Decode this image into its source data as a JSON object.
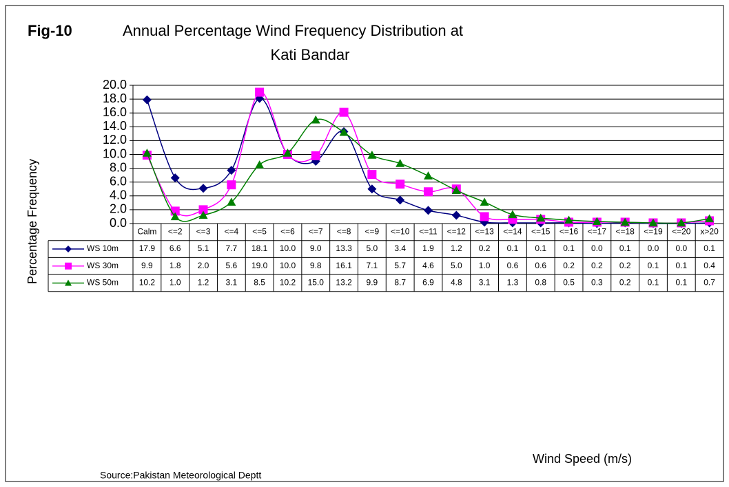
{
  "chart_data": {
    "type": "line",
    "title": "Fig-10",
    "subtitle": "Annual Percentage Wind Frequency Distribution at",
    "subtitle2": "Kati Bandar",
    "y_label": "Percentage Frequency",
    "x_label": "Wind Speed (m/s)",
    "source": "Source:Pakistan Meteorological Deptt",
    "categories": [
      "Calm",
      "<=2",
      "<=3",
      "<=4",
      "<=5",
      "<=6",
      "<=7",
      "<=8",
      "<=9",
      "<=10",
      "<=11",
      "<=12",
      "<=13",
      "<=14",
      "<=15",
      "<=16",
      "<=17",
      "<=18",
      "<=19",
      "<=20",
      "x>20"
    ],
    "series": [
      {
        "name": "WS 10m",
        "color": "#000080",
        "marker": "diamond",
        "values": [
          17.9,
          6.6,
          5.1,
          7.7,
          18.1,
          10.0,
          9.0,
          13.3,
          5.0,
          3.4,
          1.9,
          1.2,
          0.2,
          0.1,
          0.1,
          0.1,
          0.0,
          0.1,
          0.0,
          0.0,
          0.1
        ],
        "value_labels": [
          "17.9",
          "6.6",
          "5.1",
          "7.7",
          "18.1",
          "10.0",
          "9.0",
          "13.3",
          "5.0",
          "3.4",
          "1.9",
          "1.2",
          "0.2",
          "0.1",
          "0.1",
          "0.1",
          "0.0",
          "0.1",
          "0.0",
          "0.0",
          "0.1"
        ]
      },
      {
        "name": "WS 30m",
        "color": "#ff00ff",
        "marker": "square",
        "values": [
          9.9,
          1.8,
          2.0,
          5.6,
          19.0,
          10.0,
          9.8,
          16.1,
          7.1,
          5.7,
          4.6,
          5.0,
          1.0,
          0.6,
          0.6,
          0.2,
          0.2,
          0.2,
          0.1,
          0.1,
          0.4
        ],
        "value_labels": [
          "9.9",
          "1.8",
          "2.0",
          "5.6",
          "19.0",
          "10.0",
          "9.8",
          "16.1",
          "7.1",
          "5.7",
          "4.6",
          "5.0",
          "1.0",
          "0.6",
          "0.6",
          "0.2",
          "0.2",
          "0.2",
          "0.1",
          "0.1",
          "0.4"
        ]
      },
      {
        "name": "WS 50m",
        "color": "#008000",
        "marker": "triangle",
        "values": [
          10.2,
          1.0,
          1.2,
          3.1,
          8.5,
          10.2,
          15.0,
          13.2,
          9.9,
          8.7,
          6.9,
          4.8,
          3.1,
          1.3,
          0.8,
          0.5,
          0.3,
          0.2,
          0.1,
          0.1,
          0.7
        ],
        "value_labels": [
          "10.2",
          "1.0",
          "1.2",
          "3.1",
          "8.5",
          "10.2",
          "15.0",
          "13.2",
          "9.9",
          "8.7",
          "6.9",
          "4.8",
          "3.1",
          "1.3",
          "0.8",
          "0.5",
          "0.3",
          "0.2",
          "0.1",
          "0.1",
          "0.7"
        ]
      }
    ],
    "ylim": [
      0,
      20
    ],
    "yticks": [
      {
        "value": 0,
        "label": "0.0"
      },
      {
        "value": 2,
        "label": "2.0"
      },
      {
        "value": 4,
        "label": "4.0"
      },
      {
        "value": 6,
        "label": "6.0"
      },
      {
        "value": 8,
        "label": "8.0"
      },
      {
        "value": 10,
        "label": "10.0"
      },
      {
        "value": 12,
        "label": "12.0"
      },
      {
        "value": 14,
        "label": "14.0"
      },
      {
        "value": 16,
        "label": "16.0"
      },
      {
        "value": 18,
        "label": "18.0"
      },
      {
        "value": 20,
        "label": "20.0"
      }
    ],
    "grid": true,
    "smooth": true
  }
}
